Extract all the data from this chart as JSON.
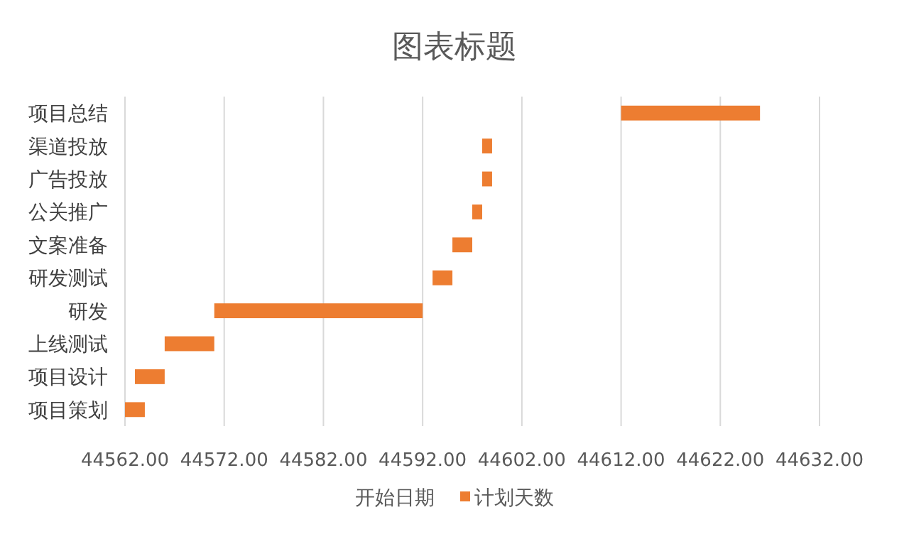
{
  "chart_data": {
    "type": "bar",
    "orientation": "horizontal",
    "title": "图表标题",
    "categories": [
      "项目总结",
      "渠道投放",
      "广告投放",
      "公关推广",
      "文案准备",
      "研发测试",
      "研发",
      "上线测试",
      "项目设计",
      "项目策划"
    ],
    "series": [
      {
        "name": "计划天数",
        "color": "#ed7d31",
        "values": [
          14,
          1,
          1,
          1,
          2,
          2,
          21,
          5,
          3,
          2
        ],
        "base": [
          44612,
          44598,
          44598,
          44597,
          44595,
          44593,
          44571,
          44566,
          44563,
          44562
        ]
      }
    ],
    "xlim": [
      44562,
      44632
    ],
    "xticks": [
      {
        "value": 44562,
        "label": "44562.00"
      },
      {
        "value": 44572,
        "label": "44572.00"
      },
      {
        "value": 44582,
        "label": "44582.00"
      },
      {
        "value": 44592,
        "label": "44592.00"
      },
      {
        "value": 44602,
        "label": "44602.00"
      },
      {
        "value": 44612,
        "label": "44612.00"
      },
      {
        "value": 44622,
        "label": "44622.00"
      },
      {
        "value": 44632,
        "label": "44632.00"
      }
    ],
    "annotations": [
      "开始日期"
    ],
    "grid": "x",
    "legend": "bottom"
  }
}
